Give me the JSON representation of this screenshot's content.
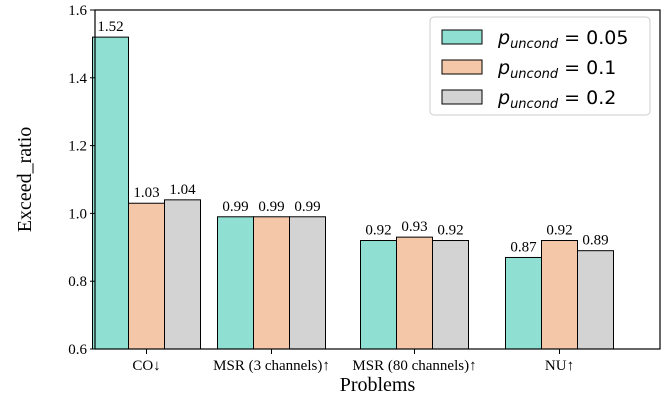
{
  "chart_data": {
    "type": "bar",
    "xlabel": "Problems",
    "ylabel": "Exceed_ratio",
    "ylim": [
      0.6,
      1.6
    ],
    "yticks": [
      "0.6",
      "0.8",
      "1.0",
      "1.2",
      "1.4",
      "1.6"
    ],
    "categories": [
      "CO↓",
      "MSR (3 channels)↑",
      "MSR (80 channels)↑",
      "NU↑"
    ],
    "series": [
      {
        "name": "p_uncond = 0.05",
        "name_base": "p",
        "name_sub": "uncond",
        "name_rest": " = 0.05",
        "color": "#8fe0d2",
        "values": [
          1.52,
          0.99,
          0.92,
          0.87
        ],
        "labels": [
          "1.52",
          "0.99",
          "0.92",
          "0.87"
        ]
      },
      {
        "name": "p_uncond = 0.1",
        "name_base": "p",
        "name_sub": "uncond",
        "name_rest": " = 0.1",
        "color": "#f4c7a9",
        "values": [
          1.03,
          0.99,
          0.93,
          0.92
        ],
        "labels": [
          "1.03",
          "0.99",
          "0.93",
          "0.92"
        ]
      },
      {
        "name": "p_uncond = 0.2",
        "name_base": "p",
        "name_sub": "uncond",
        "name_rest": " = 0.2",
        "color": "#d3d3d3",
        "values": [
          1.04,
          0.99,
          0.92,
          0.89
        ],
        "labels": [
          "1.04",
          "0.99",
          "0.92",
          "0.89"
        ]
      }
    ],
    "legend_position": "top-right",
    "grid": false
  }
}
